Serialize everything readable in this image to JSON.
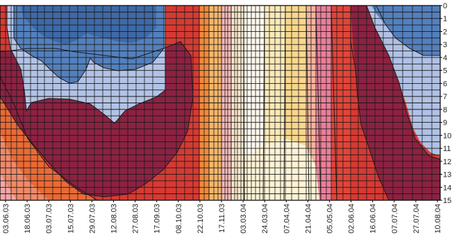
{
  "chart_data": {
    "type": "heatmap",
    "title": "",
    "xlabel": "",
    "ylabel": "",
    "x_ticks": [
      "03.06.03",
      "18.06.03",
      "03.07.03",
      "15.07.03",
      "29.07.03",
      "12.08.03",
      "27.08.03",
      "17.09.03",
      "08.10.03",
      "22.10.03",
      "17.11.03",
      "03.03.04",
      "24.03.04",
      "07.04.04",
      "21.04.04",
      "05.05.04",
      "02.06.04",
      "16.06.04",
      "07.07.04",
      "27.07.04",
      "10.08.04"
    ],
    "y_ticks": [
      "0",
      "1",
      "2",
      "3",
      "4",
      "5",
      "6",
      "7",
      "8",
      "9",
      "10",
      "11",
      "12",
      "13",
      "14",
      "15"
    ],
    "ylim": [
      15,
      0
    ],
    "grid": true,
    "color_scale": [
      "#2f5f9e",
      "#4c7ab6",
      "#93aede",
      "#c0d0ee",
      "#8c2040",
      "#c12a3e",
      "#e6492f",
      "#f28a3a",
      "#f4b25a",
      "#f8df9a",
      "#fffbea",
      "#f6c2c9",
      "#e77793"
    ],
    "zones": [
      {
        "name": "upper_blue",
        "x_range": [
          "03.07.03",
          "17.09.03"
        ],
        "depth_range": [
          0,
          6
        ]
      },
      {
        "name": "lower_maroon",
        "x_range": [
          "03.06.03",
          "22.10.03"
        ],
        "depth_range": [
          4,
          15
        ]
      },
      {
        "name": "center_light",
        "x_range": [
          "17.11.03",
          "21.04.04"
        ],
        "depth_range": [
          0,
          15
        ]
      },
      {
        "name": "right_blue",
        "x_range": [
          "16.06.04",
          "10.08.04"
        ],
        "depth_range": [
          0,
          12
        ]
      },
      {
        "name": "right_maroon",
        "x_range": [
          "02.06.04",
          "10.08.04"
        ],
        "depth_range": [
          2,
          15
        ]
      }
    ]
  }
}
